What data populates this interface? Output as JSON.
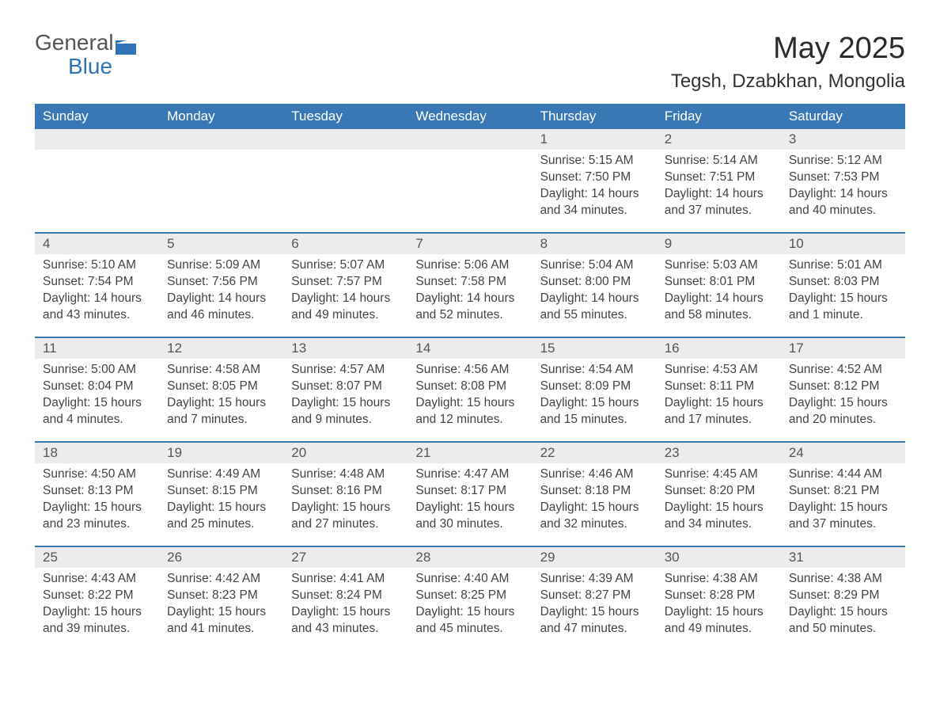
{
  "logo": {
    "general": "General",
    "blue": "Blue",
    "icon_color": "#2f75b5"
  },
  "title": "May 2025",
  "location": "Tegsh, Dzabkhan, Mongolia",
  "colors": {
    "header_bg": "#3a78b5",
    "header_text": "#ffffff",
    "numstrip_bg": "#ececec",
    "week_border": "#3a78b5",
    "body_text": "#444444",
    "page_bg": "#ffffff"
  },
  "typography": {
    "title_fontsize": 38,
    "location_fontsize": 24,
    "header_fontsize": 17,
    "daynum_fontsize": 17,
    "body_fontsize": 15.5
  },
  "day_headers": [
    "Sunday",
    "Monday",
    "Tuesday",
    "Wednesday",
    "Thursday",
    "Friday",
    "Saturday"
  ],
  "weeks": [
    [
      {
        "num": "",
        "sunrise": "",
        "sunset": "",
        "daylight": ""
      },
      {
        "num": "",
        "sunrise": "",
        "sunset": "",
        "daylight": ""
      },
      {
        "num": "",
        "sunrise": "",
        "sunset": "",
        "daylight": ""
      },
      {
        "num": "",
        "sunrise": "",
        "sunset": "",
        "daylight": ""
      },
      {
        "num": "1",
        "sunrise": "Sunrise: 5:15 AM",
        "sunset": "Sunset: 7:50 PM",
        "daylight": "Daylight: 14 hours and 34 minutes."
      },
      {
        "num": "2",
        "sunrise": "Sunrise: 5:14 AM",
        "sunset": "Sunset: 7:51 PM",
        "daylight": "Daylight: 14 hours and 37 minutes."
      },
      {
        "num": "3",
        "sunrise": "Sunrise: 5:12 AM",
        "sunset": "Sunset: 7:53 PM",
        "daylight": "Daylight: 14 hours and 40 minutes."
      }
    ],
    [
      {
        "num": "4",
        "sunrise": "Sunrise: 5:10 AM",
        "sunset": "Sunset: 7:54 PM",
        "daylight": "Daylight: 14 hours and 43 minutes."
      },
      {
        "num": "5",
        "sunrise": "Sunrise: 5:09 AM",
        "sunset": "Sunset: 7:56 PM",
        "daylight": "Daylight: 14 hours and 46 minutes."
      },
      {
        "num": "6",
        "sunrise": "Sunrise: 5:07 AM",
        "sunset": "Sunset: 7:57 PM",
        "daylight": "Daylight: 14 hours and 49 minutes."
      },
      {
        "num": "7",
        "sunrise": "Sunrise: 5:06 AM",
        "sunset": "Sunset: 7:58 PM",
        "daylight": "Daylight: 14 hours and 52 minutes."
      },
      {
        "num": "8",
        "sunrise": "Sunrise: 5:04 AM",
        "sunset": "Sunset: 8:00 PM",
        "daylight": "Daylight: 14 hours and 55 minutes."
      },
      {
        "num": "9",
        "sunrise": "Sunrise: 5:03 AM",
        "sunset": "Sunset: 8:01 PM",
        "daylight": "Daylight: 14 hours and 58 minutes."
      },
      {
        "num": "10",
        "sunrise": "Sunrise: 5:01 AM",
        "sunset": "Sunset: 8:03 PM",
        "daylight": "Daylight: 15 hours and 1 minute."
      }
    ],
    [
      {
        "num": "11",
        "sunrise": "Sunrise: 5:00 AM",
        "sunset": "Sunset: 8:04 PM",
        "daylight": "Daylight: 15 hours and 4 minutes."
      },
      {
        "num": "12",
        "sunrise": "Sunrise: 4:58 AM",
        "sunset": "Sunset: 8:05 PM",
        "daylight": "Daylight: 15 hours and 7 minutes."
      },
      {
        "num": "13",
        "sunrise": "Sunrise: 4:57 AM",
        "sunset": "Sunset: 8:07 PM",
        "daylight": "Daylight: 15 hours and 9 minutes."
      },
      {
        "num": "14",
        "sunrise": "Sunrise: 4:56 AM",
        "sunset": "Sunset: 8:08 PM",
        "daylight": "Daylight: 15 hours and 12 minutes."
      },
      {
        "num": "15",
        "sunrise": "Sunrise: 4:54 AM",
        "sunset": "Sunset: 8:09 PM",
        "daylight": "Daylight: 15 hours and 15 minutes."
      },
      {
        "num": "16",
        "sunrise": "Sunrise: 4:53 AM",
        "sunset": "Sunset: 8:11 PM",
        "daylight": "Daylight: 15 hours and 17 minutes."
      },
      {
        "num": "17",
        "sunrise": "Sunrise: 4:52 AM",
        "sunset": "Sunset: 8:12 PM",
        "daylight": "Daylight: 15 hours and 20 minutes."
      }
    ],
    [
      {
        "num": "18",
        "sunrise": "Sunrise: 4:50 AM",
        "sunset": "Sunset: 8:13 PM",
        "daylight": "Daylight: 15 hours and 23 minutes."
      },
      {
        "num": "19",
        "sunrise": "Sunrise: 4:49 AM",
        "sunset": "Sunset: 8:15 PM",
        "daylight": "Daylight: 15 hours and 25 minutes."
      },
      {
        "num": "20",
        "sunrise": "Sunrise: 4:48 AM",
        "sunset": "Sunset: 8:16 PM",
        "daylight": "Daylight: 15 hours and 27 minutes."
      },
      {
        "num": "21",
        "sunrise": "Sunrise: 4:47 AM",
        "sunset": "Sunset: 8:17 PM",
        "daylight": "Daylight: 15 hours and 30 minutes."
      },
      {
        "num": "22",
        "sunrise": "Sunrise: 4:46 AM",
        "sunset": "Sunset: 8:18 PM",
        "daylight": "Daylight: 15 hours and 32 minutes."
      },
      {
        "num": "23",
        "sunrise": "Sunrise: 4:45 AM",
        "sunset": "Sunset: 8:20 PM",
        "daylight": "Daylight: 15 hours and 34 minutes."
      },
      {
        "num": "24",
        "sunrise": "Sunrise: 4:44 AM",
        "sunset": "Sunset: 8:21 PM",
        "daylight": "Daylight: 15 hours and 37 minutes."
      }
    ],
    [
      {
        "num": "25",
        "sunrise": "Sunrise: 4:43 AM",
        "sunset": "Sunset: 8:22 PM",
        "daylight": "Daylight: 15 hours and 39 minutes."
      },
      {
        "num": "26",
        "sunrise": "Sunrise: 4:42 AM",
        "sunset": "Sunset: 8:23 PM",
        "daylight": "Daylight: 15 hours and 41 minutes."
      },
      {
        "num": "27",
        "sunrise": "Sunrise: 4:41 AM",
        "sunset": "Sunset: 8:24 PM",
        "daylight": "Daylight: 15 hours and 43 minutes."
      },
      {
        "num": "28",
        "sunrise": "Sunrise: 4:40 AM",
        "sunset": "Sunset: 8:25 PM",
        "daylight": "Daylight: 15 hours and 45 minutes."
      },
      {
        "num": "29",
        "sunrise": "Sunrise: 4:39 AM",
        "sunset": "Sunset: 8:27 PM",
        "daylight": "Daylight: 15 hours and 47 minutes."
      },
      {
        "num": "30",
        "sunrise": "Sunrise: 4:38 AM",
        "sunset": "Sunset: 8:28 PM",
        "daylight": "Daylight: 15 hours and 49 minutes."
      },
      {
        "num": "31",
        "sunrise": "Sunrise: 4:38 AM",
        "sunset": "Sunset: 8:29 PM",
        "daylight": "Daylight: 15 hours and 50 minutes."
      }
    ]
  ]
}
